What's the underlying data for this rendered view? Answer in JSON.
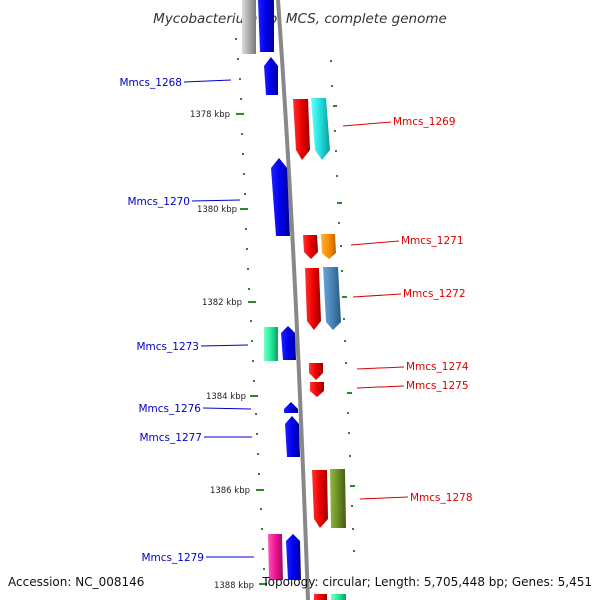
{
  "map": {
    "title": "Mycobacterium sp. MCS, complete genome",
    "accession": "Accession: NC_008146",
    "topology": "Topology: circular; Length: 5,705,448 bp; Genes: 5,451",
    "ruler_ticks": [
      "1378 kbp",
      "1380 kbp",
      "1382 kbp",
      "1384 kbp",
      "1386 kbp",
      "1388 kbp"
    ],
    "genes_forward_labels": [
      "Mmcs_1269",
      "Mmcs_1271",
      "Mmcs_1272",
      "Mmcs_1274",
      "Mmcs_1275",
      "Mmcs_1278"
    ],
    "genes_reverse_labels": [
      "Mmcs_1268",
      "Mmcs_1270",
      "Mmcs_1273",
      "Mmcs_1276",
      "Mmcs_1277",
      "Mmcs_1279"
    ],
    "colors": {
      "forward_label": "#dd0000",
      "reverse_label": "#0000cc",
      "backbone": "#888888",
      "dots": "#2a8a2a",
      "gene_blue": "#0000ee",
      "gene_red": "#ee0000",
      "gene_cyan": "#22dddd",
      "gene_orange": "#ff8c00",
      "gene_steelblue": "#4682b4",
      "gene_springgreen": "#22ee99",
      "gene_olive": "#6b8e23",
      "gene_magenta": "#ee1493"
    }
  }
}
